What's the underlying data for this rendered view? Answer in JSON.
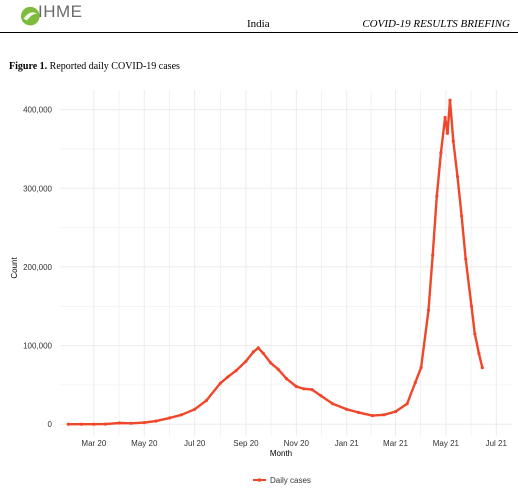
{
  "header": {
    "logo_text": "IHME",
    "country": "India",
    "briefing": "COVID-19 RESULTS BRIEFING"
  },
  "figure": {
    "label": "Figure 1.",
    "caption": "Reported daily COVID-19 cases"
  },
  "colors": {
    "series": "#f0462a",
    "grid": "#ebebeb",
    "logo_green": "#7dbb3c"
  },
  "chart_data": {
    "type": "line",
    "xlabel": "Month",
    "ylabel": "Count",
    "xlim": [
      "2020-01-20",
      "2021-07-20"
    ],
    "ylim": [
      -15000,
      425000
    ],
    "x_ticks": [
      "2020-03-01",
      "2020-05-01",
      "2020-07-01",
      "2020-09-01",
      "2020-11-01",
      "2021-01-01",
      "2021-03-01",
      "2021-05-01",
      "2021-07-01"
    ],
    "x_tick_labels": [
      "Mar 20",
      "May 20",
      "Jul 20",
      "Sep 20",
      "Nov 20",
      "Jan 21",
      "Mar 21",
      "May 21",
      "Jul 21"
    ],
    "y_ticks": [
      0,
      100000,
      200000,
      300000,
      400000
    ],
    "y_tick_labels": [
      "0",
      "100,000",
      "200,000",
      "300,000",
      "400,000"
    ],
    "grid": true,
    "legend": {
      "position": "bottom",
      "entries": [
        "Daily cases"
      ]
    },
    "series": [
      {
        "name": "Daily cases",
        "x": [
          "2020-01-30",
          "2020-02-15",
          "2020-03-01",
          "2020-03-15",
          "2020-04-01",
          "2020-04-15",
          "2020-05-01",
          "2020-05-15",
          "2020-06-01",
          "2020-06-15",
          "2020-07-01",
          "2020-07-15",
          "2020-08-01",
          "2020-08-10",
          "2020-08-20",
          "2020-09-01",
          "2020-09-10",
          "2020-09-16",
          "2020-09-22",
          "2020-10-01",
          "2020-10-10",
          "2020-10-20",
          "2020-11-01",
          "2020-11-10",
          "2020-11-20",
          "2020-12-01",
          "2020-12-15",
          "2021-01-01",
          "2021-01-15",
          "2021-02-01",
          "2021-02-15",
          "2021-03-01",
          "2021-03-15",
          "2021-03-25",
          "2021-04-01",
          "2021-04-10",
          "2021-04-15",
          "2021-04-20",
          "2021-04-25",
          "2021-04-30",
          "2021-05-03",
          "2021-05-06",
          "2021-05-10",
          "2021-05-15",
          "2021-05-20",
          "2021-05-25",
          "2021-06-01",
          "2021-06-05",
          "2021-06-10",
          "2021-06-14"
        ],
        "y": [
          0,
          0,
          50,
          100,
          1500,
          1200,
          2000,
          4000,
          8000,
          12000,
          19000,
          30000,
          52000,
          60000,
          68000,
          80000,
          92000,
          97000,
          90000,
          78000,
          70000,
          58000,
          48000,
          45000,
          44000,
          36000,
          26000,
          19000,
          15000,
          11000,
          12000,
          16000,
          26000,
          53000,
          72000,
          145000,
          215000,
          290000,
          345000,
          390000,
          370000,
          412000,
          360000,
          315000,
          265000,
          210000,
          150000,
          115000,
          90000,
          72000
        ]
      }
    ]
  }
}
